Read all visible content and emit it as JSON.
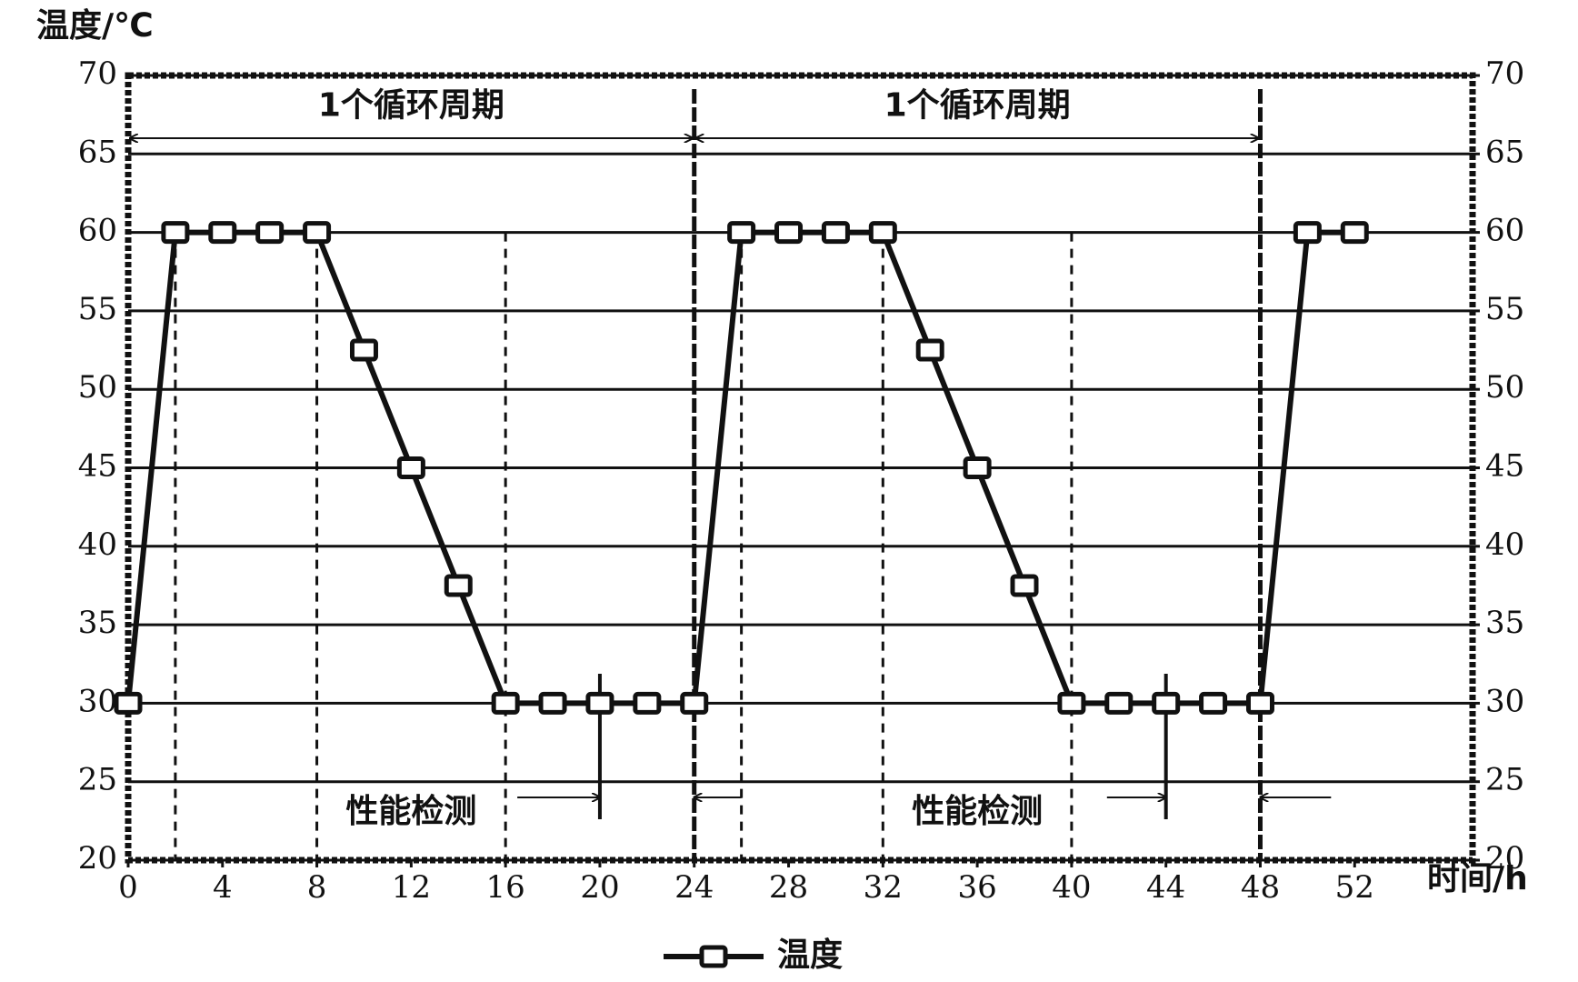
{
  "chart_data": {
    "type": "line",
    "y_label": "温度/℃",
    "x_label": "时间/h",
    "x": [
      0,
      2,
      4,
      6,
      8,
      10,
      12,
      14,
      16,
      18,
      20,
      22,
      24,
      26,
      28,
      30,
      32,
      34,
      36,
      38,
      40,
      42,
      44,
      46,
      48,
      50,
      52
    ],
    "series": [
      {
        "name": "温度",
        "color": "#111111",
        "values": [
          30,
          60,
          60,
          60,
          60,
          52.5,
          45,
          37.5,
          30,
          30,
          30,
          30,
          30,
          60,
          60,
          60,
          60,
          52.5,
          45,
          37.5,
          30,
          30,
          30,
          30,
          30,
          60,
          60
        ]
      }
    ],
    "xlim": [
      0,
      57
    ],
    "xticks": [
      0,
      4,
      8,
      12,
      16,
      20,
      24,
      28,
      32,
      36,
      40,
      44,
      48,
      52
    ],
    "ylim": [
      20,
      70
    ],
    "yticks": [
      20,
      25,
      30,
      35,
      40,
      45,
      50,
      55,
      60,
      65,
      70
    ],
    "y2lim": [
      20,
      70
    ],
    "y2ticks": [
      20,
      25,
      30,
      35,
      40,
      45,
      50,
      55,
      60,
      65,
      70
    ],
    "grid": true,
    "legend": "bottom",
    "annotations": [
      {
        "text": "1个循环周期",
        "x": 12,
        "y": 68
      },
      {
        "text": "1个循环周期",
        "x": 36,
        "y": 68
      },
      {
        "text": "性能检测",
        "x": 12,
        "y": 23
      },
      {
        "text": "性能检测",
        "x": 36,
        "y": 23
      }
    ],
    "cycle_spans": [
      {
        "from": 0,
        "to": 24,
        "y": 66
      },
      {
        "from": 24,
        "to": 48,
        "y": 66
      }
    ],
    "cycle_lines": [
      24,
      48
    ],
    "dashed_lines": [
      2,
      8,
      16,
      26,
      32,
      40
    ],
    "test_arrows": [
      {
        "from": 16.5,
        "to": 20,
        "y": 24
      },
      {
        "from": 26,
        "to": 24,
        "y": 24
      },
      {
        "from": 41.5,
        "to": 44,
        "y": 24
      },
      {
        "from": 51,
        "to": 48,
        "y": 24
      }
    ],
    "test_markers": [
      20,
      44
    ]
  }
}
